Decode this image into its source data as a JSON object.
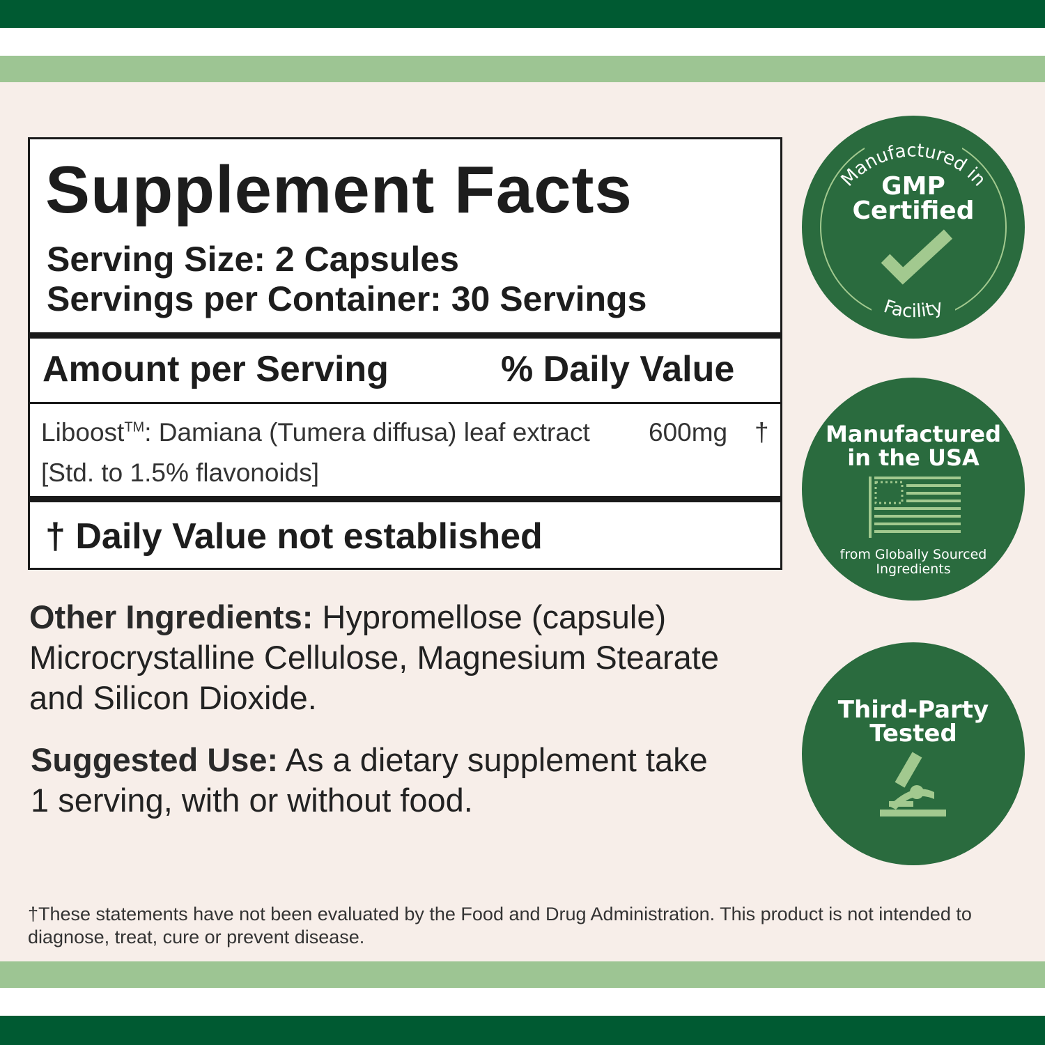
{
  "colors": {
    "dark_green": "#005a32",
    "light_green": "#9dc593",
    "badge_green": "#2a6b3e",
    "badge_accent": "#a2c98f",
    "background": "#f7eee9"
  },
  "facts": {
    "title": "Supplement Facts",
    "serving_size": "Serving Size: 2 Capsules",
    "servings_per_container": "Servings per Container: 30 Servings",
    "amount_header": "Amount per Serving",
    "dv_header": "% Daily Value",
    "ingredient": {
      "name": "Liboost",
      "tm": "TM",
      "desc": ": Damiana (Tumera diffusa) leaf extract",
      "amount": "600mg",
      "dv": "†",
      "standard": "[Std. to 1.5% flavonoids]"
    },
    "footnote": "† Daily Value not established"
  },
  "other_ingredients": {
    "label": "Other Ingredients:",
    "text": " Hypromellose (capsule) Microcrystalline Cellulose, Magnesium Stearate and Silicon Dioxide."
  },
  "suggested_use": {
    "label": "Suggested Use:",
    "text": " As a dietary supplement take 1 serving, with or without food."
  },
  "disclaimer": "†These statements have not been evaluated by the Food and Drug Administration. This product is not intended to diagnose, treat, cure or prevent disease.",
  "badges": {
    "gmp": {
      "top": "Manufactured in",
      "line1": "GMP",
      "line2": "Certified",
      "bottom": "Facility",
      "icon": "checkmark-icon"
    },
    "usa": {
      "line1": "Manufactured",
      "line2": "in the USA",
      "sub1": "from Globally Sourced",
      "sub2": "Ingredients",
      "icon": "us-flag-icon"
    },
    "tested": {
      "line1": "Third-Party",
      "line2": "Tested",
      "icon": "microscope-icon"
    }
  }
}
